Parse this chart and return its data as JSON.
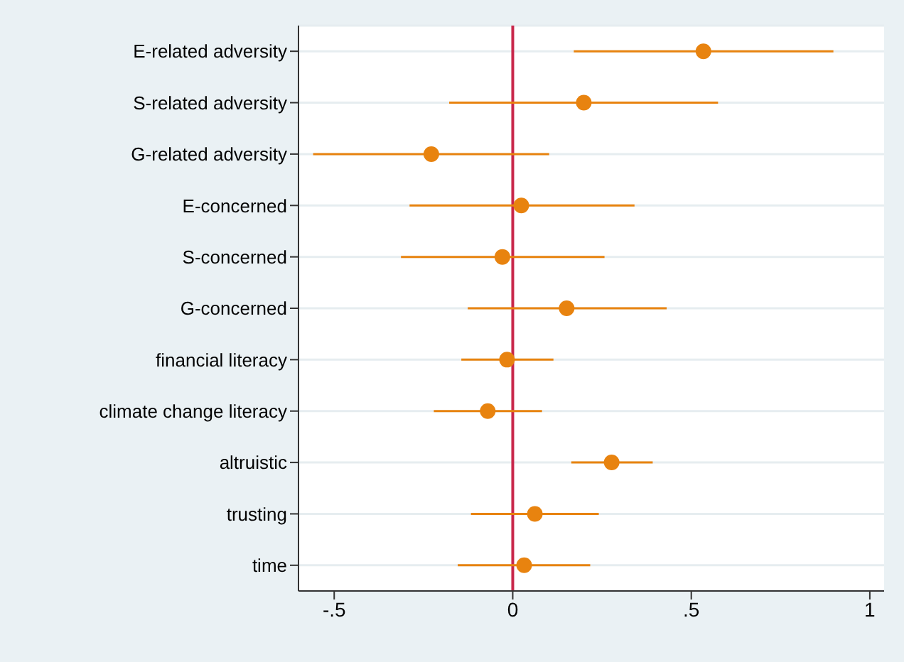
{
  "chart_data": {
    "type": "scatter",
    "orientation": "horizontal",
    "categories": [
      "E-related adversity",
      "S-related adversity",
      "G-related adversity",
      "E-concerned",
      "S-concerned",
      "G-concerned",
      "financial literacy",
      "climate change literacy",
      "altruistic",
      "trusting",
      "time"
    ],
    "values": [
      0.534,
      0.199,
      -0.228,
      0.024,
      -0.029,
      0.151,
      -0.016,
      -0.07,
      0.277,
      0.062,
      0.032
    ],
    "errors": [
      [
        0.171,
        0.898
      ],
      [
        -0.178,
        0.575
      ],
      [
        -0.559,
        0.102
      ],
      [
        -0.289,
        0.341
      ],
      [
        -0.313,
        0.257
      ],
      [
        -0.126,
        0.431
      ],
      [
        -0.144,
        0.114
      ],
      [
        -0.221,
        0.082
      ],
      [
        0.164,
        0.392
      ],
      [
        -0.117,
        0.241
      ],
      [
        -0.154,
        0.217
      ]
    ],
    "color": "#e8830f",
    "marker": "circle",
    "xlim": [
      -0.6,
      1.04
    ],
    "xticks": [
      {
        "value": -0.5,
        "label": "-.5"
      },
      {
        "value": 0,
        "label": "0"
      },
      {
        "value": 0.5,
        "label": ".5"
      },
      {
        "value": 1,
        "label": "1"
      }
    ],
    "ref_lines": [
      {
        "axis": "x",
        "value": 0,
        "color": "#c8264a"
      }
    ],
    "grid": "y"
  }
}
